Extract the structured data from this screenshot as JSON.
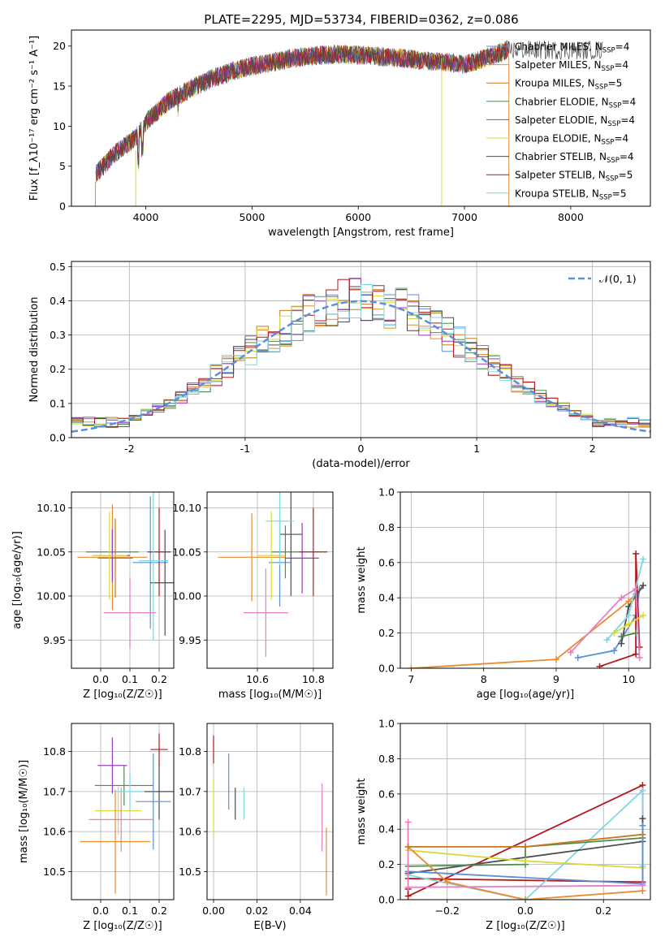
{
  "figure_title": "PLATE=2295, MJD=53734, FIBERID=0362, z=0.086",
  "colors": {
    "Chabrier MILES": "#5b8fd8",
    "Salpeter MILES": "#e98b2f",
    "Kroupa MILES": "#c7771d",
    "Chabrier ELODIE": "#4f8a4f",
    "Salpeter ELODIE": "#9b3fc2",
    "Kroupa ELODIE": "#d7db3a",
    "Chabrier STELIB": "#4d4d4d",
    "Salpeter STELIB": "#b3181c",
    "Kroupa STELIB": "#7fd6e3",
    "pink": "#e67fc0",
    "normal_dash": "#5a8fe0"
  },
  "chart_data": [
    {
      "id": "spectrum",
      "type": "line",
      "title": "PLATE=2295, MJD=53734, FIBERID=0362, z=0.086",
      "xlabel": "wavelength [Angstrom, rest frame]",
      "ylabel": "Flux [f_λ10⁻¹⁷ erg cm⁻² s⁻¹ A⁻¹]",
      "xlim": [
        3300,
        8750
      ],
      "ylim": [
        0,
        22
      ],
      "xticks": [
        4000,
        5000,
        6000,
        7000,
        8000
      ],
      "yticks": [
        0,
        5,
        10,
        15,
        20
      ],
      "legend_position": "upper-right",
      "continuum_x": [
        3500,
        3700,
        3900,
        4000,
        4200,
        4400,
        4600,
        4800,
        5000,
        5200,
        5400,
        5600,
        5800,
        6000,
        6200,
        6400,
        6600,
        6800,
        7000,
        7200,
        7400
      ],
      "continuum_y": [
        3.5,
        6.5,
        8.5,
        10.5,
        13.0,
        14.5,
        15.8,
        16.8,
        17.5,
        18.0,
        18.5,
        18.8,
        19.0,
        18.9,
        18.7,
        18.5,
        18.2,
        18.0,
        17.7,
        18.5,
        19.5
      ],
      "legend": [
        {
          "model": "Chabrier MILES",
          "nssp": "4"
        },
        {
          "model": "Salpeter MILES",
          "nssp": "4"
        },
        {
          "model": "Kroupa MILES",
          "nssp": "5"
        },
        {
          "model": "Chabrier ELODIE",
          "nssp": "4"
        },
        {
          "model": "Salpeter ELODIE",
          "nssp": "4"
        },
        {
          "model": "Kroupa ELODIE",
          "nssp": "4"
        },
        {
          "model": "Chabrier STELIB",
          "nssp": "4"
        },
        {
          "model": "Salpeter STELIB",
          "nssp": "5"
        },
        {
          "model": "Kroupa STELIB",
          "nssp": "5"
        }
      ]
    },
    {
      "id": "residuals",
      "type": "line",
      "xlabel": "(data-model)/error",
      "ylabel": "Normed distribution",
      "xlim": [
        -2.5,
        2.5
      ],
      "ylim": [
        0,
        0.515
      ],
      "xticks": [
        -2,
        -1,
        0,
        1,
        2
      ],
      "yticks": [
        0.0,
        0.1,
        0.2,
        0.3,
        0.4,
        0.5
      ],
      "grid": true,
      "legend_position": "upper-right",
      "normal_label": "𝒩(0, 1)",
      "bin_width": 0.1,
      "bin_start": -2.5,
      "bins_per_model": 50
    },
    {
      "id": "age_vs_Z",
      "type": "scatter",
      "xlabel": "Z [log₁₀(Z/Z☉)]",
      "ylabel": "age  [log₁₀(age/yr)]",
      "xlim": [
        -0.1,
        0.25
      ],
      "ylim": [
        9.918,
        10.118
      ],
      "xticks": [
        0.0,
        0.1,
        0.2
      ],
      "xtick_labels": [
        "0.0",
        "0.1",
        "0.2"
      ],
      "yticks": [
        9.95,
        10.0,
        10.05,
        10.1
      ],
      "ytick_labels": [
        "9.95",
        "10.00",
        "10.05",
        "10.10"
      ],
      "grid": true,
      "points": [
        {
          "c": "Chabrier MILES",
          "x": 0.17,
          "y": 10.038,
          "xe": 0.06,
          "ye": 0.075
        },
        {
          "c": "Salpeter MILES",
          "x": 0.04,
          "y": 10.044,
          "xe": 0.12,
          "ye": 0.06
        },
        {
          "c": "Kroupa MILES",
          "x": 0.05,
          "y": 10.043,
          "xe": 0.06,
          "ye": 0.045
        },
        {
          "c": "Chabrier ELODIE",
          "x": 0.04,
          "y": 10.05,
          "xe": 0.09,
          "ye": 0.025
        },
        {
          "c": "Salpeter ELODIE",
          "x": 0.04,
          "y": 10.046,
          "xe": 0.06,
          "ye": 0.03
        },
        {
          "c": "Kroupa ELODIE",
          "x": 0.03,
          "y": 10.046,
          "xe": 0.06,
          "ye": 0.05
        },
        {
          "c": "Chabrier STELIB",
          "x": 0.22,
          "y": 10.015,
          "xe": 0.05,
          "ye": 0.06
        },
        {
          "c": "Salpeter STELIB",
          "x": 0.2,
          "y": 10.05,
          "xe": 0.04,
          "ye": 0.05
        },
        {
          "c": "Kroupa STELIB",
          "x": 0.18,
          "y": 10.04,
          "xe": 0.05,
          "ye": 0.09
        },
        {
          "c": "pink",
          "x": 0.1,
          "y": 9.981,
          "xe": 0.09,
          "ye": 0.04
        }
      ]
    },
    {
      "id": "age_vs_mass",
      "type": "scatter",
      "xlabel": "mass [log₁₀(M/M☉)]",
      "xlim": [
        10.42,
        10.87
      ],
      "ylim": [
        9.918,
        10.118
      ],
      "xticks": [
        10.6,
        10.8
      ],
      "xtick_labels": [
        "10.6",
        "10.8"
      ],
      "yticks": [
        9.95,
        10.0,
        10.05,
        10.1
      ],
      "ytick_labels": [
        "9.95",
        "10.00",
        "10.05",
        "10.10"
      ],
      "grid": true,
      "points": [
        {
          "c": "Chabrier MILES",
          "x": 10.68,
          "y": 10.038,
          "xe": 0.04,
          "ye": 0.05
        },
        {
          "c": "Salpeter MILES",
          "x": 10.58,
          "y": 10.044,
          "xe": 0.12,
          "ye": 0.05
        },
        {
          "c": "Chabrier ELODIE",
          "x": 10.7,
          "y": 10.05,
          "xe": 0.05,
          "ye": 0.03
        },
        {
          "c": "Salpeter ELODIE",
          "x": 10.76,
          "y": 10.043,
          "xe": 0.06,
          "ye": 0.04
        },
        {
          "c": "Kroupa ELODIE",
          "x": 10.65,
          "y": 10.046,
          "xe": 0.05,
          "ye": 0.05
        },
        {
          "c": "Chabrier STELIB",
          "x": 10.72,
          "y": 10.07,
          "xe": 0.04,
          "ye": 0.07
        },
        {
          "c": "Salpeter STELIB",
          "x": 10.8,
          "y": 10.05,
          "xe": 0.05,
          "ye": 0.05
        },
        {
          "c": "Kroupa STELIB",
          "x": 10.68,
          "y": 10.085,
          "xe": 0.05,
          "ye": 0.05
        },
        {
          "c": "pink",
          "x": 10.63,
          "y": 9.981,
          "xe": 0.08,
          "ye": 0.05
        }
      ]
    },
    {
      "id": "weights_vs_age",
      "type": "line",
      "xlabel": "age  [log₁₀(age/yr)]",
      "ylabel": "mass weight",
      "xlim": [
        6.85,
        10.3
      ],
      "ylim": [
        0,
        1
      ],
      "xticks": [
        7,
        8,
        9,
        10
      ],
      "yticks": [
        0.0,
        0.2,
        0.4,
        0.6,
        0.8,
        1.0
      ],
      "grid": true,
      "series": [
        {
          "c": "Salpeter MILES",
          "x": [
            7.0,
            9.0,
            10.0,
            10.1
          ],
          "y": [
            0.0,
            0.05,
            0.38,
            0.42
          ]
        },
        {
          "c": "Chabrier MILES",
          "x": [
            9.3,
            9.8,
            10.1,
            10.15
          ],
          "y": [
            0.06,
            0.1,
            0.3,
            0.45
          ]
        },
        {
          "c": "Salpeter STELIB",
          "x": [
            9.6,
            10.1,
            10.1,
            10.15
          ],
          "y": [
            0.01,
            0.08,
            0.65,
            0.12
          ]
        },
        {
          "c": "Chabrier STELIB",
          "x": [
            9.9,
            10.0,
            10.2
          ],
          "y": [
            0.14,
            0.35,
            0.47
          ]
        },
        {
          "c": "Kroupa STELIB",
          "x": [
            9.7,
            10.0,
            10.2
          ],
          "y": [
            0.16,
            0.3,
            0.62
          ]
        },
        {
          "c": "pink",
          "x": [
            9.2,
            9.9,
            10.1,
            10.15
          ],
          "y": [
            0.09,
            0.4,
            0.45,
            0.06
          ]
        },
        {
          "c": "Kroupa ELODIE",
          "x": [
            9.8,
            10.0,
            10.2
          ],
          "y": [
            0.2,
            0.25,
            0.3
          ]
        },
        {
          "c": "Chabrier ELODIE",
          "x": [
            9.9,
            10.1
          ],
          "y": [
            0.18,
            0.2
          ]
        }
      ]
    },
    {
      "id": "mass_vs_Z",
      "type": "scatter",
      "xlabel": "Z [log₁₀(Z/Z☉)]",
      "ylabel": "mass [log₁₀(M/M☉)]",
      "xlim": [
        -0.1,
        0.25
      ],
      "ylim": [
        10.43,
        10.87
      ],
      "xticks": [
        0.0,
        0.1,
        0.2
      ],
      "xtick_labels": [
        "0.0",
        "0.1",
        "0.2"
      ],
      "yticks": [
        10.5,
        10.6,
        10.7,
        10.8
      ],
      "ytick_labels": [
        "10.5",
        "10.6",
        "10.7",
        "10.8"
      ],
      "grid": true,
      "points": [
        {
          "c": "Salpeter STELIB",
          "x": 0.2,
          "y": 10.805,
          "xe": 0.03,
          "ye": 0.04
        },
        {
          "c": "Salpeter ELODIE",
          "x": 0.04,
          "y": 10.765,
          "xe": 0.05,
          "ye": 0.07
        },
        {
          "c": "Chabrier ELODIE",
          "x": 0.08,
          "y": 10.715,
          "xe": 0.1,
          "ye": 0.05
        },
        {
          "c": "Chabrier STELIB",
          "x": 0.2,
          "y": 10.7,
          "xe": 0.05,
          "ye": 0.07
        },
        {
          "c": "Chabrier MILES",
          "x": 0.18,
          "y": 10.675,
          "xe": 0.06,
          "ye": 0.12
        },
        {
          "c": "Kroupa ELODIE",
          "x": 0.06,
          "y": 10.652,
          "xe": 0.08,
          "ye": 0.06
        },
        {
          "c": "pink",
          "x": 0.07,
          "y": 10.63,
          "xe": 0.11,
          "ye": 0.08
        },
        {
          "c": "Salpeter MILES",
          "x": 0.05,
          "y": 10.575,
          "xe": 0.12,
          "ye": 0.13
        },
        {
          "c": "Kroupa STELIB",
          "x": 0.1,
          "y": 10.7,
          "xe": 0.05,
          "ye": 0.05
        }
      ]
    },
    {
      "id": "mass_vs_ebv",
      "type": "scatter",
      "xlabel": "E(B-V)",
      "xlim": [
        -0.003,
        0.055
      ],
      "ylim": [
        10.43,
        10.87
      ],
      "xticks": [
        0.0,
        0.02,
        0.04
      ],
      "xtick_labels": [
        "0.00",
        "0.02",
        "0.04"
      ],
      "yticks": [
        10.5,
        10.6,
        10.7,
        10.8
      ],
      "ytick_labels": [
        "10.5",
        "10.6",
        "10.7",
        "10.8"
      ],
      "grid": true,
      "points": [
        {
          "c": "Salpeter STELIB",
          "x": 0.0,
          "y": 10.805,
          "xe": 0.0,
          "ye": 0.035
        },
        {
          "c": "Kroupa ELODIE",
          "x": 0.0,
          "y": 10.66,
          "xe": 0.0,
          "ye": 0.07
        },
        {
          "c": "Chabrier MILES",
          "x": 0.007,
          "y": 10.725,
          "xe": 0.0,
          "ye": 0.07
        },
        {
          "c": "Chabrier STELIB",
          "x": 0.01,
          "y": 10.67,
          "xe": 0.0,
          "ye": 0.04
        },
        {
          "c": "Kroupa STELIB",
          "x": 0.014,
          "y": 10.67,
          "xe": 0.0,
          "ye": 0.04
        },
        {
          "c": "pink",
          "x": 0.05,
          "y": 10.635,
          "xe": 0.0,
          "ye": 0.085
        },
        {
          "c": "Salpeter MILES",
          "x": 0.052,
          "y": 10.525,
          "xe": 0.0,
          "ye": 0.085
        }
      ]
    },
    {
      "id": "weights_vs_Z",
      "type": "line",
      "xlabel": "Z [log₁₀(Z/Z☉)]",
      "ylabel": "mass weight",
      "xlim": [
        -0.32,
        0.32
      ],
      "ylim": [
        0,
        1
      ],
      "xticks": [
        -0.2,
        0.0,
        0.2
      ],
      "xtick_labels": [
        "−0.2",
        "0.0",
        "0.2"
      ],
      "yticks": [
        0.0,
        0.2,
        0.4,
        0.6,
        0.8,
        1.0
      ],
      "grid": true,
      "series": [
        {
          "c": "Salpeter STELIB",
          "x": [
            -0.3,
            -0.3,
            0.3,
            0.3,
            -0.3
          ],
          "y": [
            0.06,
            0.02,
            0.65,
            0.1,
            0.12
          ]
        },
        {
          "c": "Kroupa STELIB",
          "x": [
            -0.3,
            0.0,
            0.3,
            0.3
          ],
          "y": [
            0.14,
            0.0,
            0.62,
            0.19
          ]
        },
        {
          "c": "Chabrier STELIB",
          "x": [
            -0.3,
            0.3,
            0.3
          ],
          "y": [
            0.15,
            0.33,
            0.46
          ]
        },
        {
          "c": "Chabrier ELODIE",
          "x": [
            -0.3,
            0.0,
            0.0,
            0.3
          ],
          "y": [
            0.19,
            0.2,
            0.3,
            0.35
          ]
        },
        {
          "c": "Kroupa ELODIE",
          "x": [
            -0.3,
            0.0,
            0.3
          ],
          "y": [
            0.28,
            0.22,
            0.18
          ]
        },
        {
          "c": "Salpeter MILES",
          "x": [
            -0.3,
            -0.2,
            0.0,
            0.3
          ],
          "y": [
            0.3,
            0.1,
            0.0,
            0.05
          ]
        },
        {
          "c": "Chabrier MILES",
          "x": [
            -0.3,
            0.3,
            0.3
          ],
          "y": [
            0.16,
            0.09,
            0.42
          ]
        },
        {
          "c": "pink",
          "x": [
            -0.3,
            -0.3,
            0.3
          ],
          "y": [
            0.44,
            0.07,
            0.08
          ]
        },
        {
          "c": "Kroupa MILES",
          "x": [
            -0.3,
            0.0,
            0.3
          ],
          "y": [
            0.3,
            0.3,
            0.37
          ]
        }
      ]
    }
  ]
}
